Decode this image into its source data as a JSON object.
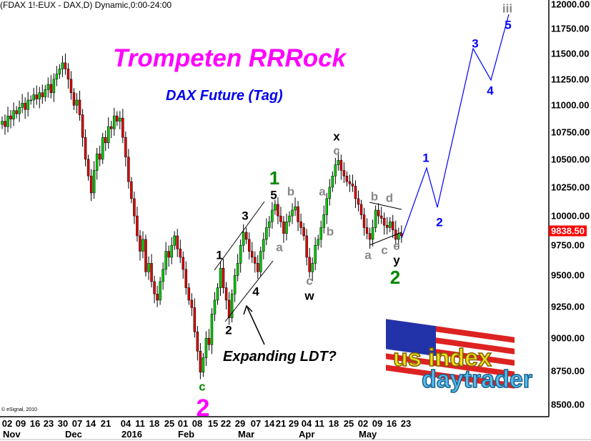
{
  "header": {
    "symbol_line": "(FDAX 1!-EUX - DAX,D) Dynamic,0:00-24:00"
  },
  "copyright": "© eSignal, 2010",
  "logo_text": "us index daytrader",
  "colors": {
    "up": "#00cc00",
    "down": "#dd0000",
    "projection": "#0000ff",
    "title": "#ff00ff",
    "subtitle": "#0000ee",
    "price_badge": "#ff0000"
  },
  "chart_data": {
    "type": "candlestick",
    "title": "Trompeten RRRock",
    "subtitle": "DAX Future (Tag)",
    "annotation": "Expanding LDT?",
    "y_scale": "log",
    "ylim": [
      8500,
      12000
    ],
    "grid": false,
    "y_ticks": [
      "12000.00",
      "11750.00",
      "11500.00",
      "11250.00",
      "11000.00",
      "10750.00",
      "10500.00",
      "10250.00",
      "10000.00",
      "9750.00",
      "9500.00",
      "9250.00",
      "9000.00",
      "8750.00",
      "8500.00"
    ],
    "x_ticks": [
      "02",
      "09",
      "16",
      "23",
      "30",
      "07",
      "14",
      "21",
      "04",
      "11",
      "18",
      "25",
      "01",
      "08",
      "15",
      "22",
      "29",
      "07",
      "14",
      "21",
      "29",
      "04",
      "11",
      "18",
      "25",
      "02",
      "09",
      "16",
      "23"
    ],
    "x_months": [
      "Nov",
      "Dec",
      "2016",
      "Feb",
      "Mar",
      "Apr",
      "May"
    ],
    "last_price": "9838.50",
    "closes": [
      10850,
      10800,
      10900,
      10870,
      10950,
      10920,
      10980,
      11020,
      10960,
      11050,
      11050,
      11100,
      11060,
      11120,
      11080,
      11150,
      11200,
      11120,
      11250,
      11300,
      11350,
      11410,
      11350,
      11250,
      11120,
      11000,
      11050,
      10910,
      10700,
      10500,
      10350,
      10200,
      10400,
      10550,
      10500,
      10700,
      10650,
      10800,
      10780,
      10900,
      10850,
      10880,
      10700,
      10520,
      10300,
      10150,
      10000,
      9830,
      9700,
      9800,
      9530,
      9600,
      9450,
      9350,
      9300,
      9450,
      9550,
      9700,
      9650,
      9750,
      9830,
      9720,
      9650,
      9550,
      9400,
      9300,
      9240,
      9050,
      8900,
      8740,
      8850,
      9000,
      8950,
      9190,
      9300,
      9400,
      9560,
      9400,
      9300,
      9160,
      9350,
      9500,
      9600,
      9750,
      9860,
      9800,
      9700,
      9650,
      9600,
      9530,
      9700,
      9800,
      9900,
      9950,
      10050,
      10100,
      10000,
      9950,
      9850,
      9950,
      10000,
      10050,
      10080,
      9950,
      9900,
      9830,
      9650,
      9530,
      9600,
      9750,
      9800,
      9900,
      10010,
      10150,
      10250,
      10350,
      10450,
      10490,
      10400,
      10350,
      10300,
      10280,
      10260,
      10150,
      10100,
      10010,
      9900,
      9850,
      9800,
      9900,
      10050,
      10000,
      9980,
      9920,
      9900,
      9950,
      9880,
      9800,
      9850,
      9830
    ],
    "projection": [
      {
        "label": "",
        "price": 9811
      },
      {
        "label": "1",
        "price": 10422
      },
      {
        "label": "2",
        "price": 10074
      },
      {
        "label": "3",
        "price": 11550
      },
      {
        "label": "4",
        "price": 11242
      },
      {
        "label": "5",
        "price": 11897
      }
    ],
    "wave_labels": [
      {
        "text": "x",
        "color": "#000000"
      },
      {
        "text": "c",
        "color": "#888888"
      },
      {
        "text": "1",
        "color": "#008800"
      },
      {
        "text": "5",
        "color": "#000000"
      },
      {
        "text": "b",
        "color": "#888888"
      },
      {
        "text": "3",
        "color": "#000000"
      },
      {
        "text": "a",
        "color": "#888888"
      },
      {
        "text": "b",
        "color": "#888888"
      },
      {
        "text": "a",
        "color": "#888888"
      },
      {
        "text": "1",
        "color": "#000000"
      },
      {
        "text": "4",
        "color": "#000000"
      },
      {
        "text": "c",
        "color": "#888888"
      },
      {
        "text": "w",
        "color": "#000000"
      },
      {
        "text": "2",
        "color": "#000000"
      },
      {
        "text": "b",
        "color": "#888888"
      },
      {
        "text": "d",
        "color": "#888888"
      },
      {
        "text": "a",
        "color": "#888888"
      },
      {
        "text": "c",
        "color": "#888888"
      },
      {
        "text": "e",
        "color": "#888888"
      },
      {
        "text": "y",
        "color": "#000000"
      },
      {
        "text": "2",
        "color": "#008800"
      },
      {
        "text": "1",
        "color": "#0000ff"
      },
      {
        "text": "2",
        "color": "#0000ff"
      },
      {
        "text": "3",
        "color": "#0000ff"
      },
      {
        "text": "4",
        "color": "#0000ff"
      },
      {
        "text": "5",
        "color": "#0000ff"
      },
      {
        "text": "iii",
        "color": "#888888"
      },
      {
        "text": "c",
        "color": "#008800"
      },
      {
        "text": "2",
        "color": "#ff00ff"
      }
    ]
  }
}
